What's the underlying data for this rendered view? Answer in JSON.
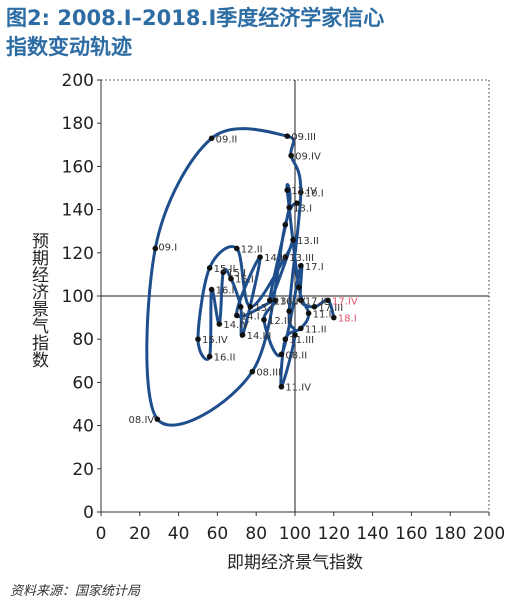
{
  "figure": {
    "title_line1": "图2: 2008.Ⅰ–2018.Ⅰ季度经济学家信心",
    "title_line2": "指数变动轨迹",
    "source": "资料来源：国家统计局"
  },
  "chart_data": {
    "type": "line",
    "xlabel": "即期经济景气指数",
    "ylabel": "预期经济景气指数",
    "xlim": [
      0,
      200
    ],
    "ylim": [
      0,
      200
    ],
    "x_ticks": [
      "0",
      "20",
      "40",
      "60",
      "80",
      "100",
      "120",
      "140",
      "160",
      "180",
      "200"
    ],
    "y_ticks": [
      "0",
      "20",
      "40",
      "60",
      "80",
      "100",
      "120",
      "140",
      "160",
      "180",
      "200"
    ],
    "reference_lines": {
      "x": 100,
      "y": 100
    },
    "grid": false,
    "colors": {
      "line": "#1f4e8c",
      "highlight": "#e0556b",
      "title": "#2e6da4"
    },
    "points": [
      {
        "x": 101,
        "y": 143,
        "label": ""
      },
      {
        "x": 95,
        "y": 133,
        "label": ""
      },
      {
        "x": 78,
        "y": 65,
        "label": "08.III"
      },
      {
        "x": 29,
        "y": 43,
        "label": "08.IV"
      },
      {
        "x": 28,
        "y": 122,
        "label": "09.I"
      },
      {
        "x": 57,
        "y": 173,
        "label": "09.II"
      },
      {
        "x": 96,
        "y": 174,
        "label": "09.III"
      },
      {
        "x": 98,
        "y": 165,
        "label": "09.IV"
      },
      {
        "x": 103,
        "y": 148,
        "label": "10.I"
      },
      {
        "x": 97,
        "y": 93,
        "label": ""
      },
      {
        "x": 100,
        "y": 82,
        "label": ""
      },
      {
        "x": 93,
        "y": 58,
        "label": "11.IV"
      },
      {
        "x": 95,
        "y": 80,
        "label": "11.III"
      },
      {
        "x": 103,
        "y": 85,
        "label": "11.II"
      },
      {
        "x": 107,
        "y": 92,
        "label": "11.I"
      },
      {
        "x": 102,
        "y": 104,
        "label": ""
      },
      {
        "x": 96,
        "y": 149,
        "label": "12.IV"
      },
      {
        "x": 97,
        "y": 141,
        "label": "13.I"
      },
      {
        "x": 87,
        "y": 98,
        "label": "13.IV"
      },
      {
        "x": 99,
        "y": 126,
        "label": "13.II"
      },
      {
        "x": 95,
        "y": 118,
        "label": "13.III"
      },
      {
        "x": 77,
        "y": 95,
        "label": "13.I"
      },
      {
        "x": 70,
        "y": 122,
        "label": "12.II"
      },
      {
        "x": 56,
        "y": 113,
        "label": "15.II"
      },
      {
        "x": 50,
        "y": 80,
        "label": "15.IV"
      },
      {
        "x": 56,
        "y": 72,
        "label": "16.II"
      },
      {
        "x": 57,
        "y": 103,
        "label": "16.I"
      },
      {
        "x": 61,
        "y": 87,
        "label": "14.IV"
      },
      {
        "x": 63,
        "y": 111,
        "label": "15.I"
      },
      {
        "x": 67,
        "y": 108,
        "label": "15.I"
      },
      {
        "x": 72,
        "y": 95,
        "label": ""
      },
      {
        "x": 73,
        "y": 82,
        "label": "14.III"
      },
      {
        "x": 82,
        "y": 118,
        "label": "14.II"
      },
      {
        "x": 70,
        "y": 91,
        "label": "14.I"
      },
      {
        "x": 90,
        "y": 98,
        "label": "16.IV"
      },
      {
        "x": 84,
        "y": 89,
        "label": "12.III"
      },
      {
        "x": 93,
        "y": 73,
        "label": "08.II"
      },
      {
        "x": 103,
        "y": 114,
        "label": "17.I"
      },
      {
        "x": 103,
        "y": 98,
        "label": "17.II"
      },
      {
        "x": 110,
        "y": 95,
        "label": "17.III"
      },
      {
        "x": 117,
        "y": 98,
        "label": "17.IV"
      },
      {
        "x": 120,
        "y": 90,
        "label": "18.I"
      }
    ],
    "highlight_labels": [
      "17.IV",
      "18.I"
    ]
  }
}
